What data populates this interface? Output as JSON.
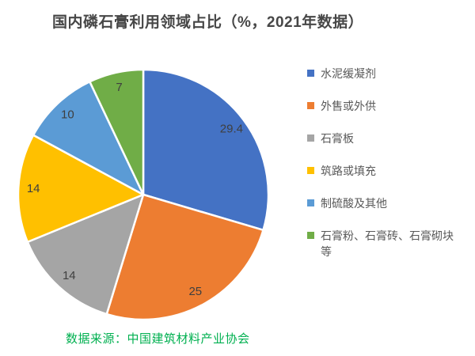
{
  "title": "国内磷石膏利用领域占比（%，2021年数据）",
  "source": "数据来源：中国建筑材料产业协会",
  "colors": {
    "background": "#FFFFFF",
    "title_text": "#474747",
    "data_label_text": "#3F3F3F",
    "legend_text": "#595959",
    "source_text": "#00B050",
    "slice_border": "#FFFFFF"
  },
  "chart_data": {
    "type": "pie",
    "title": "国内磷石膏利用领域占比（%，2021年数据）",
    "start_angle_deg": 0,
    "direction": "clockwise",
    "legend_position": "right",
    "data_labels": "inside-end",
    "categories": [
      "水泥缓凝剂",
      "外售或外供",
      "石膏板",
      "筑路或填充",
      "制硫酸及其他",
      "石膏粉、石膏砖、石膏砌块等"
    ],
    "values": [
      29.4,
      25,
      14,
      14,
      10,
      7
    ],
    "value_labels": [
      "29.4",
      "25",
      "14",
      "14",
      "10",
      "7"
    ],
    "slice_colors": [
      "#4472C4",
      "#ED7D31",
      "#A5A5A5",
      "#FFC000",
      "#5B9BD5",
      "#70AD47"
    ]
  }
}
